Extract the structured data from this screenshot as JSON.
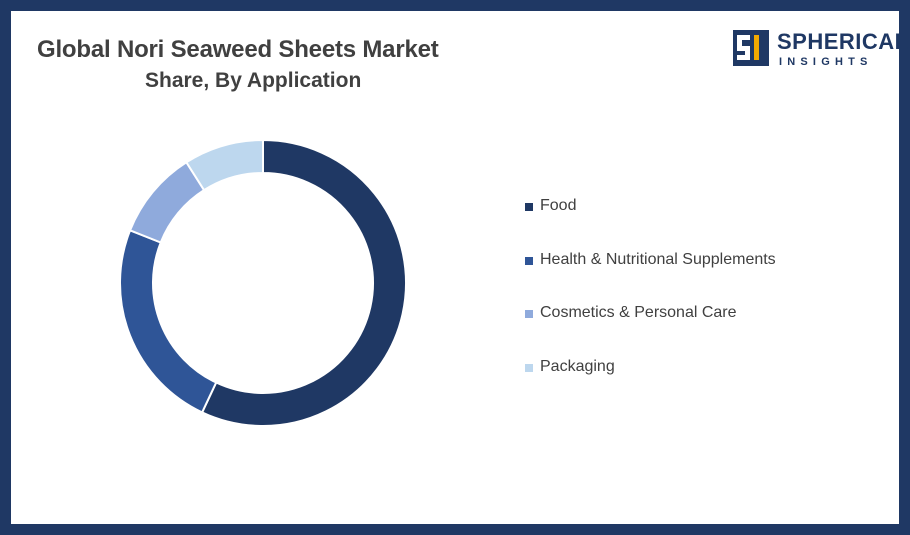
{
  "brand": {
    "name": "SPHERICAL",
    "tagline": "INSIGHTS",
    "color": "#1f3864",
    "accent": "#f2a900"
  },
  "chart_data": {
    "type": "pie",
    "variant": "donut",
    "title": "Global Nori Seaweed Sheets Market",
    "subtitle": "Share, By Application",
    "legend_position": "right",
    "categories": [
      "Food",
      "Health & Nutritional Supplements",
      "Cosmetics & Personal Care",
      "Packaging"
    ],
    "values": [
      57,
      24,
      10,
      9
    ],
    "colors": [
      "#1f3864",
      "#2f5597",
      "#8faadc",
      "#bdd7ee"
    ]
  }
}
